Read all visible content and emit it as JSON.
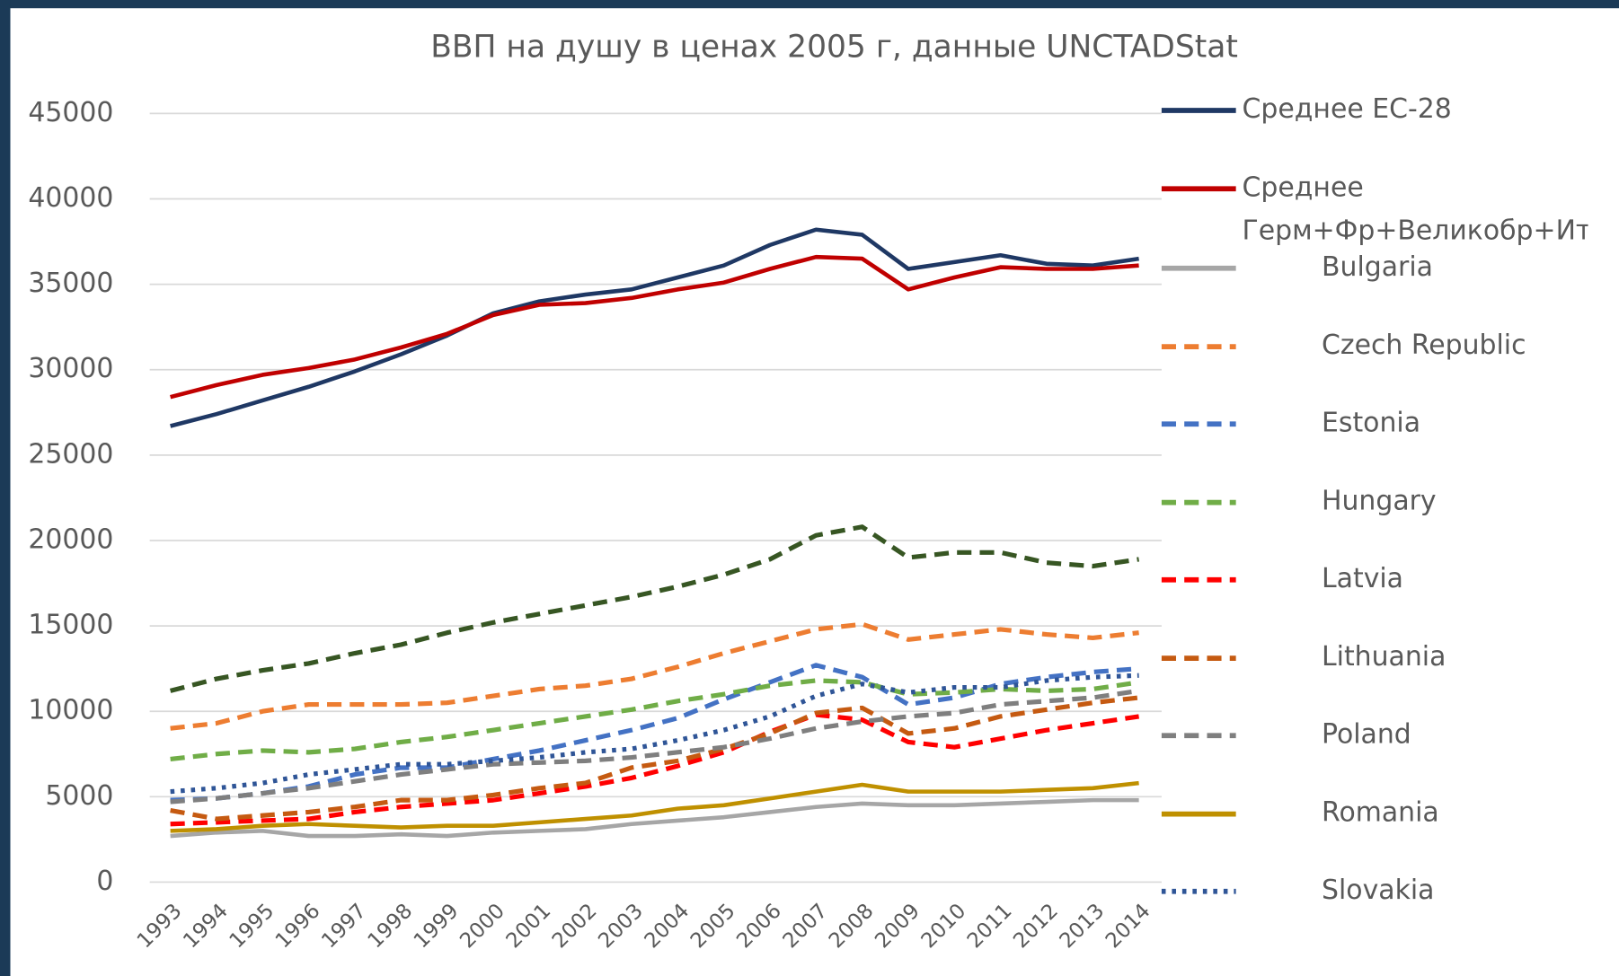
{
  "chart_data": {
    "type": "line",
    "title": "ВВП на душу в ценах 2005 г, данные UNCTADStat",
    "categories": [
      "1993",
      "1994",
      "1995",
      "1996",
      "1997",
      "1998",
      "1999",
      "2000",
      "2001",
      "2002",
      "2003",
      "2004",
      "2005",
      "2006",
      "2007",
      "2008",
      "2009",
      "2010",
      "2011",
      "2012",
      "2013",
      "2014"
    ],
    "ylim": [
      0,
      45000
    ],
    "yticks": [
      0,
      5000,
      10000,
      15000,
      20000,
      25000,
      30000,
      35000,
      40000,
      45000
    ],
    "grid": true,
    "legend": "right",
    "series": [
      {
        "name": "Среднее ЕС-28",
        "color": "#1f3864",
        "style": "solid",
        "values": [
          26700,
          27400,
          28200,
          29000,
          29900,
          30900,
          32000,
          33300,
          34000,
          34400,
          34700,
          35400,
          36100,
          37300,
          38200,
          37900,
          35900,
          36300,
          36700,
          36200,
          36100,
          36500
        ]
      },
      {
        "name": "Среднее Герм+Фр+Великобр+Ит",
        "color": "#c00000",
        "style": "solid",
        "values": [
          28400,
          29100,
          29700,
          30100,
          30600,
          31300,
          32100,
          33200,
          33800,
          33900,
          34200,
          34700,
          35100,
          35900,
          36600,
          36500,
          34700,
          35400,
          36000,
          35900,
          35900,
          36100
        ]
      },
      {
        "name": "Bulgaria",
        "color": "#a6a6a6",
        "style": "solid",
        "values": [
          2700,
          2900,
          3000,
          2700,
          2700,
          2800,
          2700,
          2900,
          3000,
          3100,
          3400,
          3600,
          3800,
          4100,
          4400,
          4600,
          4500,
          4500,
          4600,
          4700,
          4800,
          4800
        ]
      },
      {
        "name": "Czech Republic",
        "color": "#ed7d31",
        "style": "dashed",
        "values": [
          9000,
          9300,
          10000,
          10400,
          10400,
          10400,
          10500,
          10900,
          11300,
          11500,
          11900,
          12600,
          13400,
          14100,
          14800,
          15100,
          14200,
          14500,
          14800,
          14500,
          14300,
          14600
        ]
      },
      {
        "name": "Estonia",
        "color": "#4472c4",
        "style": "dashed",
        "values": [
          4800,
          4900,
          5200,
          5600,
          6300,
          6700,
          6700,
          7200,
          7700,
          8300,
          8900,
          9600,
          10700,
          11700,
          12700,
          12000,
          10400,
          10800,
          11600,
          12000,
          12300,
          12500
        ]
      },
      {
        "name": "Hungary",
        "color": "#70ad47",
        "style": "dashed",
        "values": [
          7200,
          7500,
          7700,
          7600,
          7800,
          8200,
          8500,
          8900,
          9300,
          9700,
          10100,
          10600,
          11000,
          11500,
          11800,
          11700,
          11000,
          11100,
          11300,
          11200,
          11300,
          11700
        ]
      },
      {
        "name": "Latvia",
        "color": "#ff0000",
        "style": "dashed",
        "values": [
          3400,
          3500,
          3600,
          3700,
          4100,
          4400,
          4600,
          4800,
          5200,
          5600,
          6100,
          6800,
          7600,
          8800,
          9800,
          9500,
          8200,
          7900,
          8400,
          8900,
          9300,
          9700
        ]
      },
      {
        "name": "Lithuania",
        "color": "#c55a11",
        "style": "dashed",
        "values": [
          4200,
          3700,
          3900,
          4100,
          4400,
          4800,
          4800,
          5100,
          5500,
          5800,
          6700,
          7100,
          7800,
          8700,
          9900,
          10200,
          8700,
          9000,
          9700,
          10100,
          10500,
          10800
        ]
      },
      {
        "name": "Poland",
        "color": "#7f7f7f",
        "style": "dashed",
        "values": [
          4700,
          4900,
          5200,
          5500,
          5900,
          6300,
          6600,
          6900,
          7000,
          7100,
          7300,
          7600,
          7900,
          8400,
          9000,
          9400,
          9700,
          9900,
          10400,
          10600,
          10800,
          11200
        ]
      },
      {
        "name": "Romania",
        "color": "#bf9000",
        "style": "solid",
        "values": [
          3000,
          3100,
          3300,
          3400,
          3300,
          3200,
          3300,
          3300,
          3500,
          3700,
          3900,
          4300,
          4500,
          4900,
          5300,
          5700,
          5300,
          5300,
          5300,
          5400,
          5500,
          5800
        ]
      },
      {
        "name": "Slovakia",
        "color": "#2f5597",
        "style": "dotted",
        "values": [
          5300,
          5500,
          5800,
          6300,
          6600,
          6900,
          6900,
          7100,
          7300,
          7600,
          7800,
          8300,
          8900,
          9700,
          10900,
          11600,
          11100,
          11400,
          11400,
          11800,
          12000,
          12100
        ]
      },
      {
        "color": "#375623",
        "style": "dashed",
        "values": [
          11200,
          11900,
          12400,
          12800,
          13400,
          13900,
          14600,
          15200,
          15700,
          16200,
          16700,
          17300,
          18000,
          18900,
          20300,
          20800,
          19000,
          19300,
          19300,
          18700,
          18500,
          18900
        ]
      }
    ]
  }
}
